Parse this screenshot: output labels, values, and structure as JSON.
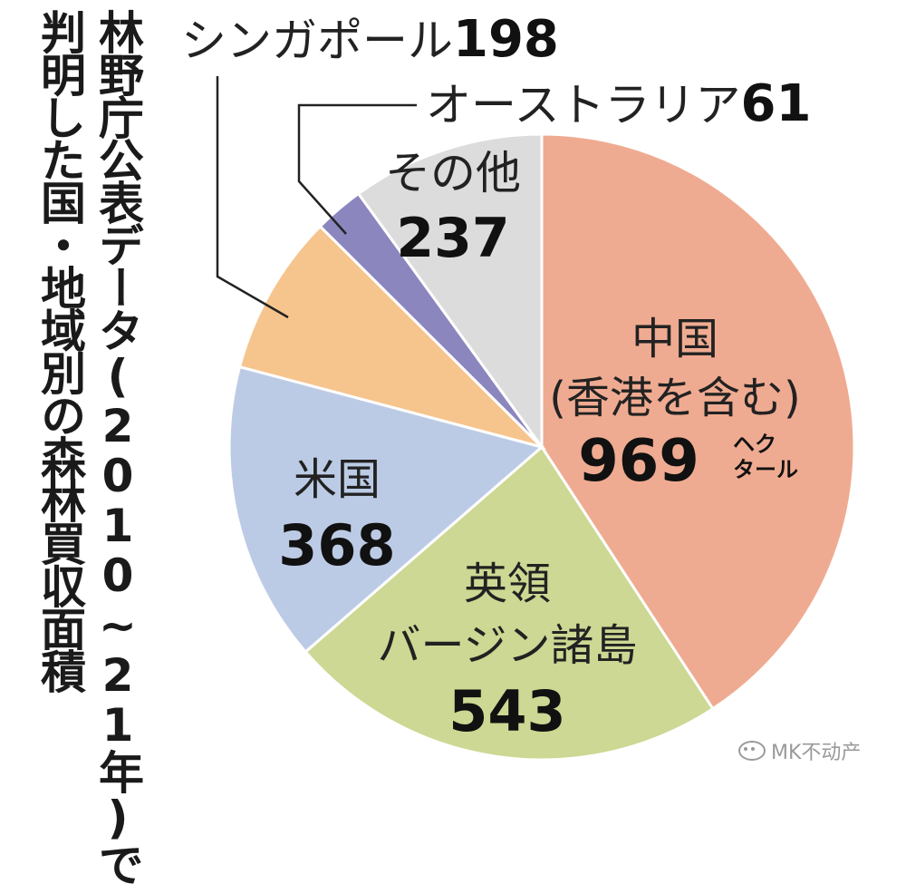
{
  "title": {
    "line1": "林野庁公表データ(2010~21年)で",
    "line2": "判明した国・地域別の森林買収面積"
  },
  "watermark": {
    "text": "MK不动产",
    "icon": "wechat-icon"
  },
  "chart_data": {
    "type": "pie",
    "unit": "ヘクタール",
    "start": "12 o'clock",
    "direction": "clockwise",
    "slices": [
      {
        "label": [
          "中国",
          "(香港を含む)"
        ],
        "value": 969,
        "show_unit": true,
        "color": "#EFAB91"
      },
      {
        "label": [
          "英領",
          "バージン諸島"
        ],
        "value": 543,
        "color": "#CCD893"
      },
      {
        "label": [
          "米国"
        ],
        "value": 368,
        "color": "#BCCBE5"
      },
      {
        "label": [
          "シンガポール"
        ],
        "value": 198,
        "color": "#F6C48D"
      },
      {
        "label": [
          "オーストラリア"
        ],
        "value": 61,
        "color": "#8C86BE"
      },
      {
        "label": [
          "その他"
        ],
        "value": 237,
        "color": "#DCDCDC"
      }
    ]
  }
}
